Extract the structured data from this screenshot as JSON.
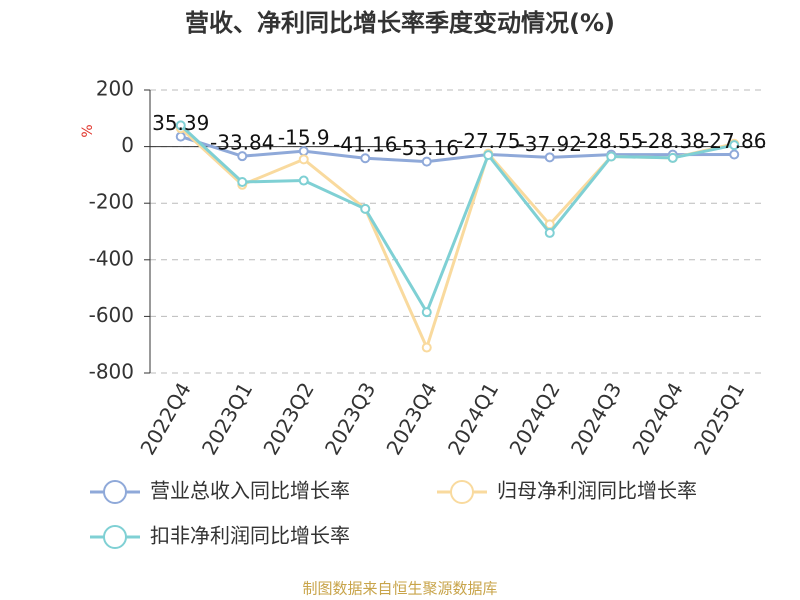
{
  "chart_data": {
    "type": "line",
    "title": "营收、净利同比增长率季度变动情况(%)",
    "y_label": "%",
    "source": "制图数据来自恒生聚源数据库",
    "categories": [
      "2022Q4",
      "2023Q1",
      "2023Q2",
      "2023Q3",
      "2023Q4",
      "2024Q1",
      "2024Q2",
      "2024Q3",
      "2024Q4",
      "2025Q1"
    ],
    "series": [
      {
        "name": "营业总收入同比增长率",
        "color": "#8fa9d9",
        "values": [
          35.39,
          -33.84,
          -15.9,
          -41.16,
          -53.16,
          -27.75,
          -37.92,
          -28.55,
          -28.38,
          -27.86
        ]
      },
      {
        "name": "归母净利润同比增长率",
        "color": "#f9da9e",
        "values": [
          65,
          -135,
          -45,
          -220,
          -710,
          -25,
          -275,
          -35,
          -40,
          10
        ]
      },
      {
        "name": "扣非净利润同比增长率",
        "color": "#7fd0d4",
        "values": [
          75,
          -125,
          -120,
          -220,
          -585,
          -30,
          -305,
          -35,
          -40,
          5
        ]
      }
    ],
    "ylim": [
      -800,
      200
    ],
    "yticks": [
      200,
      0,
      -200,
      -400,
      -600,
      -800
    ],
    "grid": true
  }
}
